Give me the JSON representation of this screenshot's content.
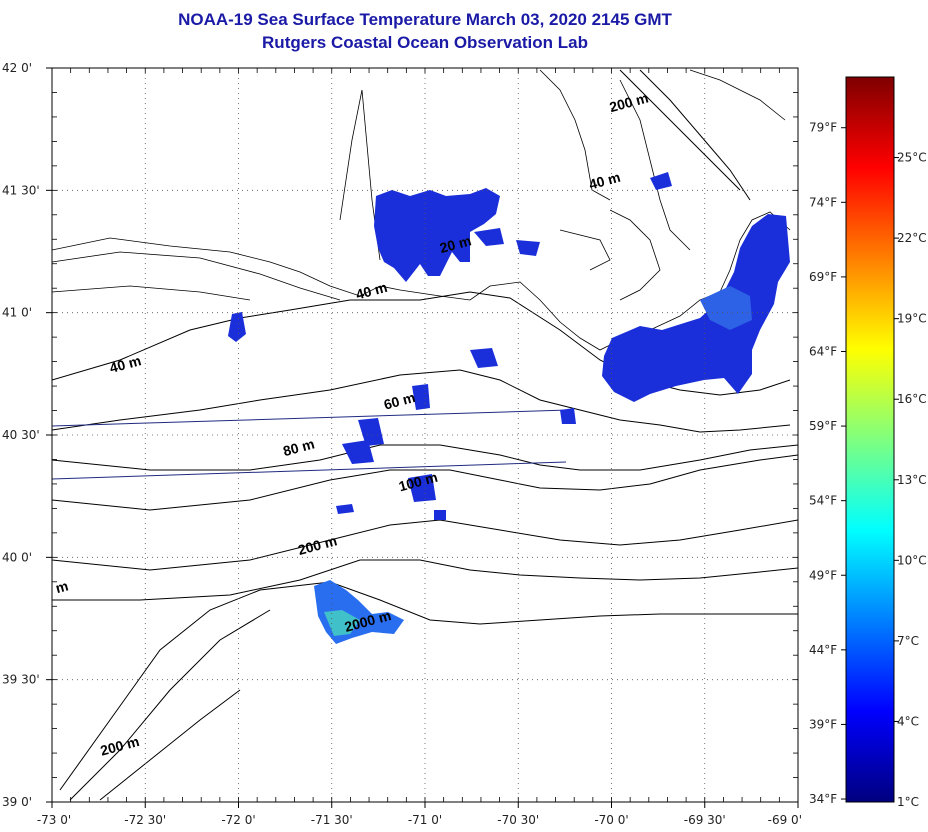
{
  "title": {
    "line1": "NOAA-19 Sea Surface Temperature March 03, 2020 2145 GMT",
    "line2": "Rutgers Coastal Ocean Observation Lab"
  },
  "map": {
    "lon_range": [
      -73,
      -69
    ],
    "lat_range": [
      39,
      42
    ],
    "lon_ticks": [
      {
        "value": -73,
        "label": "-73 0'"
      },
      {
        "value": -72.5,
        "label": "-72 30'"
      },
      {
        "value": -72,
        "label": "-72 0'"
      },
      {
        "value": -71.5,
        "label": "-71 30'"
      },
      {
        "value": -71,
        "label": "-71 0'"
      },
      {
        "value": -70.5,
        "label": "-70 30'"
      },
      {
        "value": -70,
        "label": "-70 0'"
      },
      {
        "value": -69.5,
        "label": "-69 30'"
      },
      {
        "value": -69,
        "label": "-69 0'"
      }
    ],
    "lat_ticks": [
      {
        "value": 42,
        "label": "42 0'"
      },
      {
        "value": 41.5,
        "label": "41 30'"
      },
      {
        "value": 41,
        "label": "41 0'"
      },
      {
        "value": 40.5,
        "label": "40 30'"
      },
      {
        "value": 40,
        "label": "40 0'"
      },
      {
        "value": 39.5,
        "label": "39 30'"
      },
      {
        "value": 39,
        "label": "39 0'"
      }
    ],
    "grid": "dotted"
  },
  "depth_labels": [
    {
      "text": "200 m",
      "lon": -69.9,
      "lat": 41.84
    },
    {
      "text": "40 m",
      "lon": -70.03,
      "lat": 41.52
    },
    {
      "text": "20 m",
      "lon": -70.83,
      "lat": 41.26
    },
    {
      "text": "40 m",
      "lon": -71.28,
      "lat": 41.07
    },
    {
      "text": "40 m",
      "lon": -72.6,
      "lat": 40.77
    },
    {
      "text": "60 m",
      "lon": -71.13,
      "lat": 40.62
    },
    {
      "text": "80 m",
      "lon": -71.67,
      "lat": 40.43
    },
    {
      "text": "100 m",
      "lon": -71.03,
      "lat": 40.29
    },
    {
      "text": "200 m",
      "lon": -71.57,
      "lat": 40.03
    },
    {
      "text": "2000 m",
      "lon": -71.3,
      "lat": 39.72
    },
    {
      "text": "200 m",
      "lon": -72.63,
      "lat": 39.21
    },
    {
      "text": "m",
      "lon": -72.94,
      "lat": 39.86
    }
  ],
  "colorbar": {
    "range_c": [
      1,
      28
    ],
    "celsius_labels": [
      {
        "value": 1,
        "label": "1°C"
      },
      {
        "value": 4,
        "label": "4°C"
      },
      {
        "value": 7,
        "label": "7°C"
      },
      {
        "value": 10,
        "label": "10°C"
      },
      {
        "value": 13,
        "label": "13°C"
      },
      {
        "value": 16,
        "label": "16°C"
      },
      {
        "value": 19,
        "label": "19°C"
      },
      {
        "value": 22,
        "label": "22°C"
      },
      {
        "value": 25,
        "label": "25°C"
      }
    ],
    "fahrenheit_labels": [
      {
        "value": 34,
        "label": "34°F"
      },
      {
        "value": 39,
        "label": "39°F"
      },
      {
        "value": 44,
        "label": "44°F"
      },
      {
        "value": 49,
        "label": "49°F"
      },
      {
        "value": 54,
        "label": "54°F"
      },
      {
        "value": 59,
        "label": "59°F"
      },
      {
        "value": 64,
        "label": "64°F"
      },
      {
        "value": 69,
        "label": "69°F"
      },
      {
        "value": 74,
        "label": "74°F"
      },
      {
        "value": 79,
        "label": "79°F"
      }
    ],
    "colors": [
      "#00007f",
      "#0000ff",
      "#007fff",
      "#00ffff",
      "#7fff7f",
      "#ffff00",
      "#ff7f00",
      "#ff0000",
      "#7f0000"
    ]
  },
  "colors": {
    "title": "#1a1aa6",
    "sst_blue": "#1a2fd9",
    "sst_cyan": "#40c0c8",
    "track_line": "#1f2a80"
  }
}
